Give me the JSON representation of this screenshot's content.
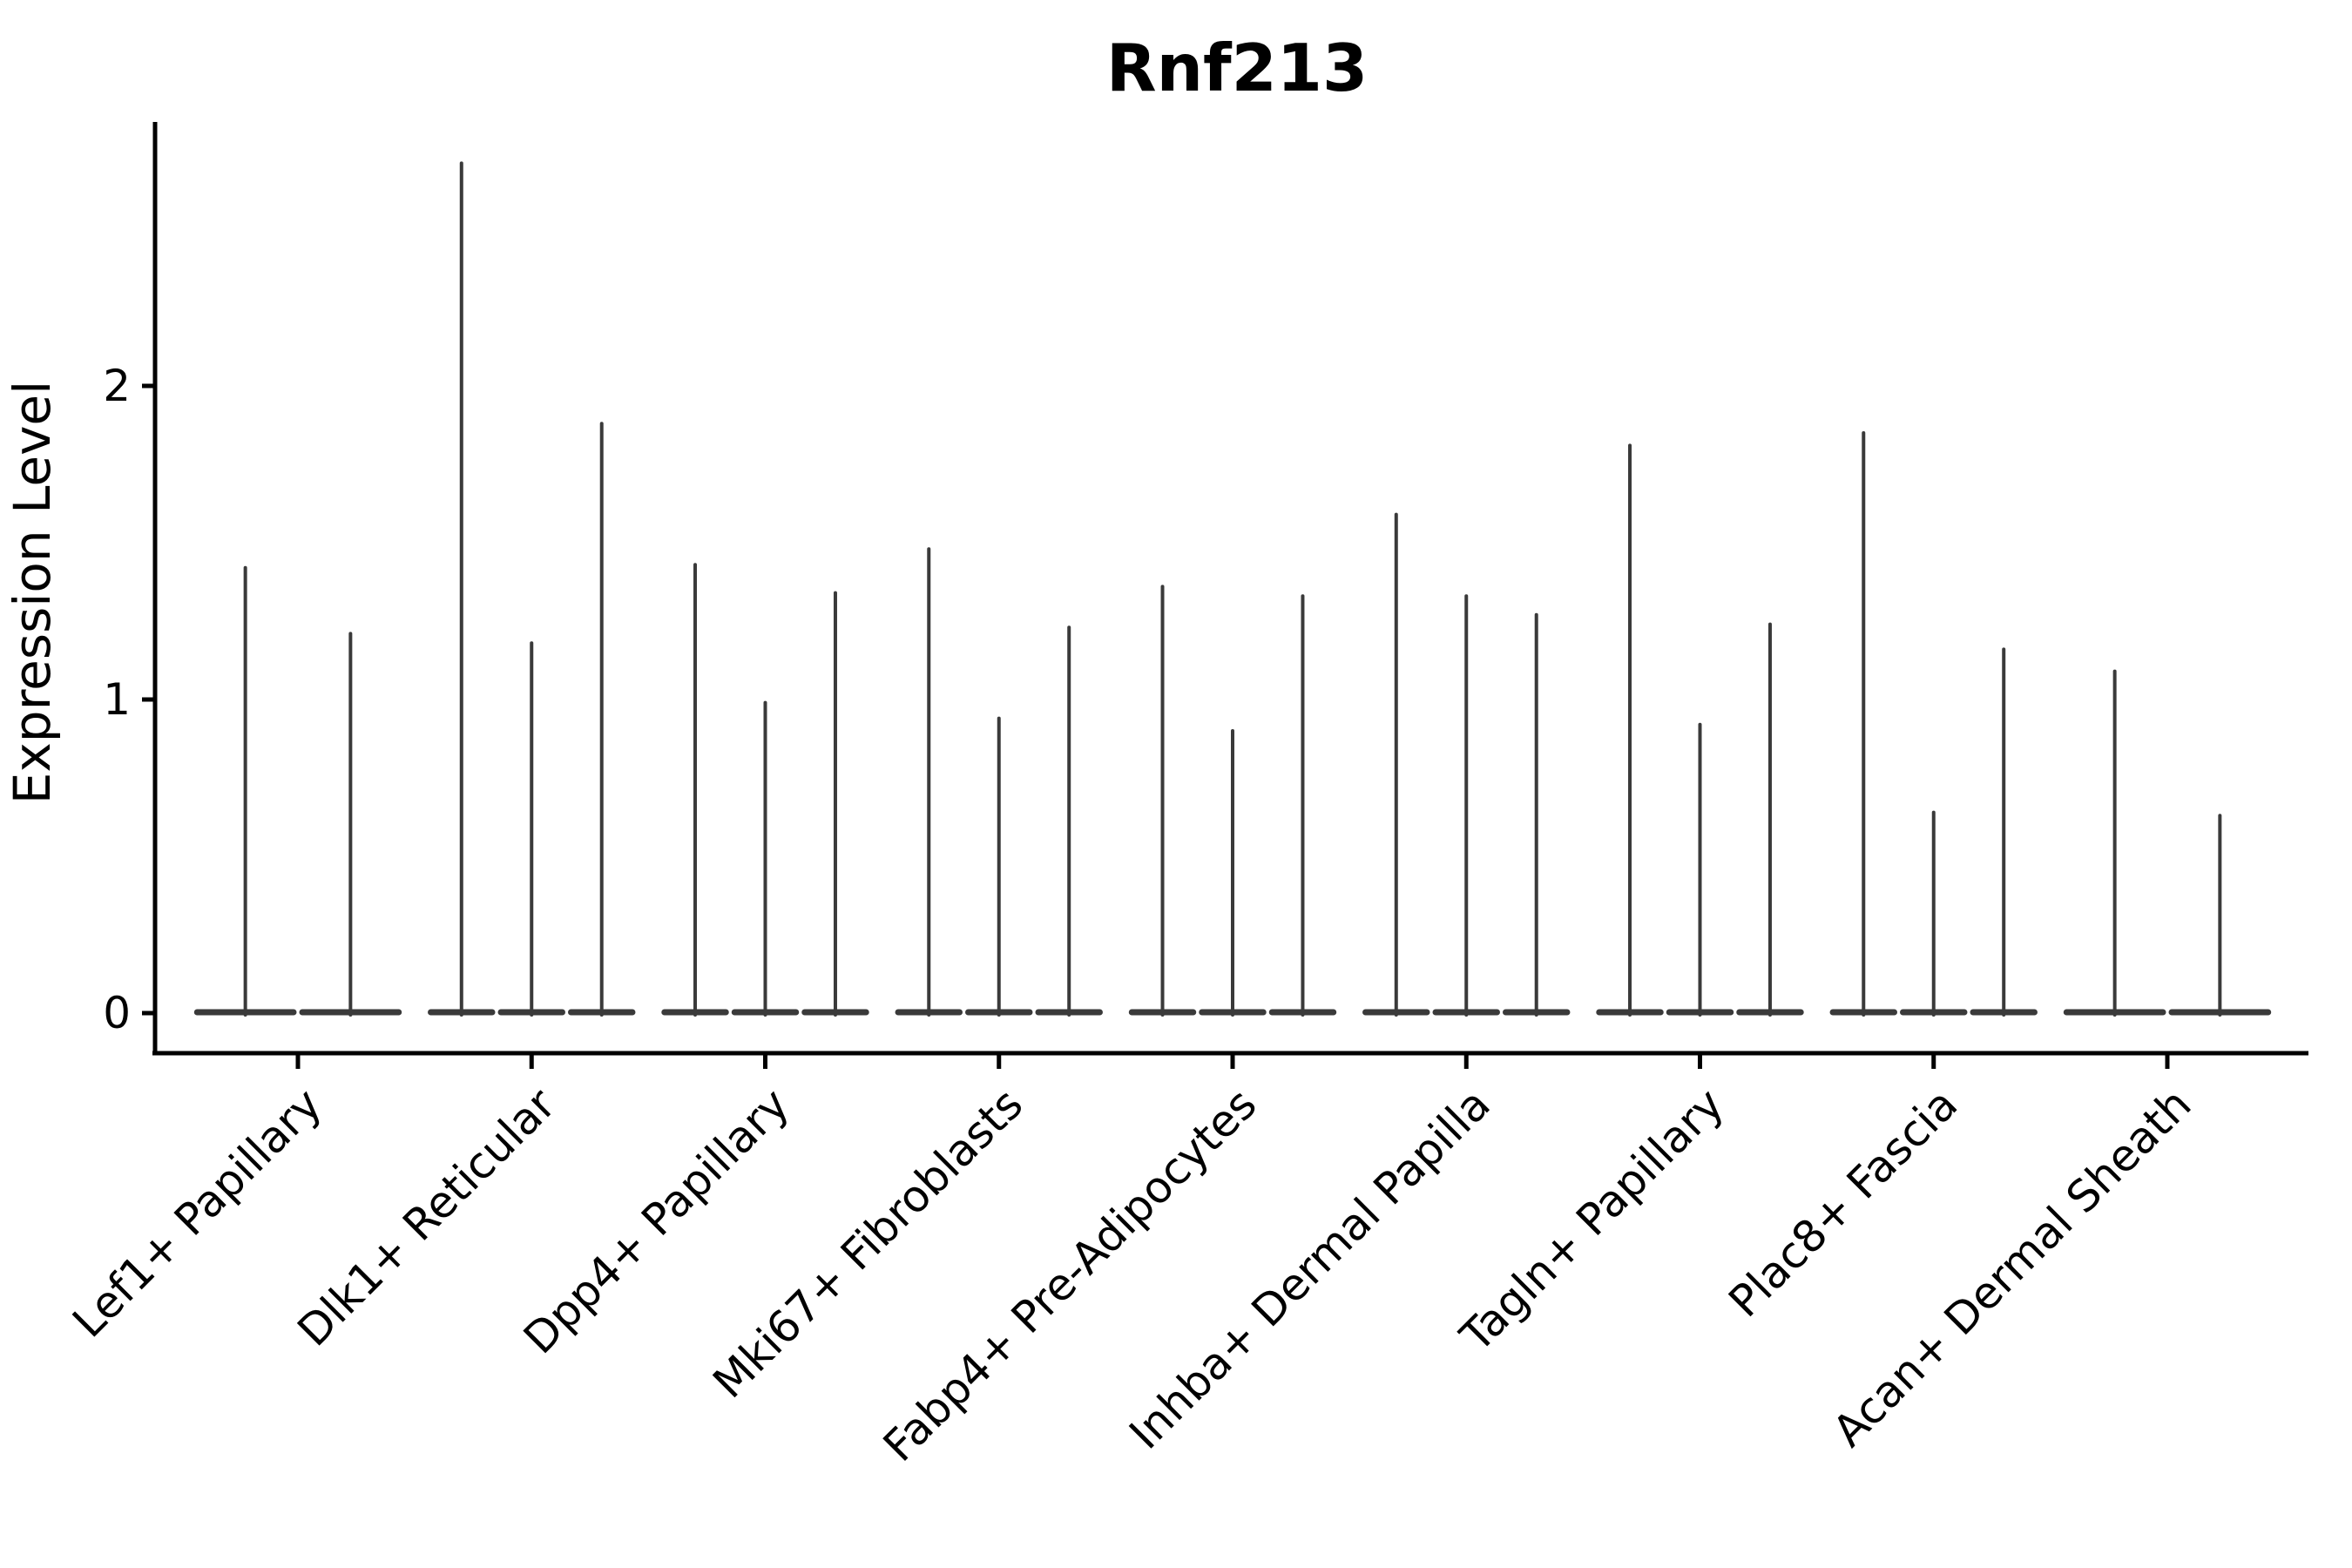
{
  "chart_data": {
    "type": "violin",
    "title": "Rnf213",
    "xlabel": "",
    "ylabel": "Expression Level",
    "yticks": [
      "0",
      "1",
      "2"
    ],
    "ytick_values": [
      0,
      1,
      2
    ],
    "ylim": [
      -0.13,
      2.84
    ],
    "grid": false,
    "legend": false,
    "categories": [
      "Lef1+ Papillary",
      "Dlk1+ Reticular",
      "Dpp4+ Papillary",
      "Mki67+ Fibroblasts",
      "Fabp4+ Pre-Adipocytes",
      "Inhba+ Dermal Papilla",
      "Tagln+ Papillary",
      "Plac8+ Fascia",
      "Acan+ Dermal Sheath"
    ],
    "violin_spike_maxima": [
      [
        1.42,
        1.21
      ],
      [
        2.71,
        1.18,
        1.88
      ],
      [
        1.43,
        0.99,
        1.34
      ],
      [
        1.48,
        0.94,
        1.23
      ],
      [
        1.36,
        0.9,
        1.33
      ],
      [
        1.59,
        1.33,
        1.27
      ],
      [
        1.81,
        0.92,
        1.24
      ],
      [
        1.85,
        0.64,
        1.16
      ],
      [
        1.09,
        0.63
      ]
    ],
    "violin_baseline_value": 0,
    "colors": {
      "violin_line": "#3a3a3a",
      "axis": "#000000",
      "text": "#000000",
      "background": "#ffffff"
    }
  }
}
